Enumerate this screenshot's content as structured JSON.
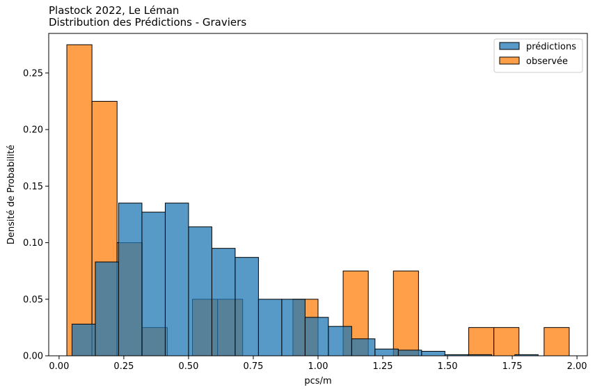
{
  "chart_data": {
    "type": "bar",
    "title": "Plastock 2022, Le Léman",
    "subtitle": "Distribution des Prédictions - Graviers",
    "xlabel": "pcs/m",
    "ylabel": "Densité de Probabilité",
    "xlim": [
      -0.04,
      2.04
    ],
    "ylim": [
      0,
      0.285
    ],
    "xticks": [
      0.0,
      0.25,
      0.5,
      0.75,
      1.0,
      1.25,
      1.5,
      1.75,
      2.0
    ],
    "xtick_labels": [
      "0.00",
      "0.25",
      "0.50",
      "0.75",
      "1.00",
      "1.25",
      "1.50",
      "1.75",
      "2.00"
    ],
    "yticks": [
      0.0,
      0.05,
      0.1,
      0.15,
      0.2,
      0.25
    ],
    "ytick_labels": [
      "0.00",
      "0.05",
      "0.10",
      "0.15",
      "0.20",
      "0.25"
    ],
    "grid": false,
    "legend_position": "top-right",
    "series": [
      {
        "name": "prédictions",
        "color": "#1f77b4",
        "bins": [
          {
            "x0": 0.05,
            "x1": 0.14,
            "density": 0.028
          },
          {
            "x0": 0.14,
            "x1": 0.23,
            "density": 0.083
          },
          {
            "x0": 0.23,
            "x1": 0.32,
            "density": 0.135
          },
          {
            "x0": 0.32,
            "x1": 0.41,
            "density": 0.127
          },
          {
            "x0": 0.41,
            "x1": 0.5,
            "density": 0.135
          },
          {
            "x0": 0.5,
            "x1": 0.59,
            "density": 0.114
          },
          {
            "x0": 0.59,
            "x1": 0.68,
            "density": 0.095
          },
          {
            "x0": 0.68,
            "x1": 0.77,
            "density": 0.087
          },
          {
            "x0": 0.77,
            "x1": 0.86,
            "density": 0.05
          },
          {
            "x0": 0.86,
            "x1": 0.95,
            "density": 0.05
          },
          {
            "x0": 0.95,
            "x1": 1.04,
            "density": 0.034
          },
          {
            "x0": 1.04,
            "x1": 1.13,
            "density": 0.026
          },
          {
            "x0": 1.13,
            "x1": 1.22,
            "density": 0.015
          },
          {
            "x0": 1.22,
            "x1": 1.31,
            "density": 0.006
          },
          {
            "x0": 1.31,
            "x1": 1.4,
            "density": 0.005
          },
          {
            "x0": 1.4,
            "x1": 1.49,
            "density": 0.004
          },
          {
            "x0": 1.49,
            "x1": 1.58,
            "density": 0.001
          },
          {
            "x0": 1.58,
            "x1": 1.67,
            "density": 0.001
          },
          {
            "x0": 1.67,
            "x1": 1.76,
            "density": 0.0
          },
          {
            "x0": 1.76,
            "x1": 1.85,
            "density": 0.001
          }
        ]
      },
      {
        "name": "observée",
        "color": "#ff7f0e",
        "bins": [
          {
            "x0": 0.03,
            "x1": 0.127,
            "density": 0.275
          },
          {
            "x0": 0.127,
            "x1": 0.224,
            "density": 0.225
          },
          {
            "x0": 0.224,
            "x1": 0.321,
            "density": 0.1
          },
          {
            "x0": 0.321,
            "x1": 0.418,
            "density": 0.025
          },
          {
            "x0": 0.418,
            "x1": 0.515,
            "density": 0.0
          },
          {
            "x0": 0.515,
            "x1": 0.612,
            "density": 0.05
          },
          {
            "x0": 0.612,
            "x1": 0.709,
            "density": 0.05
          },
          {
            "x0": 0.709,
            "x1": 0.806,
            "density": 0.0
          },
          {
            "x0": 0.806,
            "x1": 0.903,
            "density": 0.0
          },
          {
            "x0": 0.903,
            "x1": 1.0,
            "density": 0.05
          },
          {
            "x0": 1.0,
            "x1": 1.097,
            "density": 0.0
          },
          {
            "x0": 1.097,
            "x1": 1.194,
            "density": 0.075
          },
          {
            "x0": 1.194,
            "x1": 1.291,
            "density": 0.0
          },
          {
            "x0": 1.291,
            "x1": 1.388,
            "density": 0.075
          },
          {
            "x0": 1.388,
            "x1": 1.485,
            "density": 0.0
          },
          {
            "x0": 1.485,
            "x1": 1.582,
            "density": 0.0
          },
          {
            "x0": 1.582,
            "x1": 1.679,
            "density": 0.025
          },
          {
            "x0": 1.679,
            "x1": 1.776,
            "density": 0.025
          },
          {
            "x0": 1.776,
            "x1": 1.873,
            "density": 0.0
          },
          {
            "x0": 1.873,
            "x1": 1.97,
            "density": 0.025
          }
        ]
      }
    ]
  }
}
